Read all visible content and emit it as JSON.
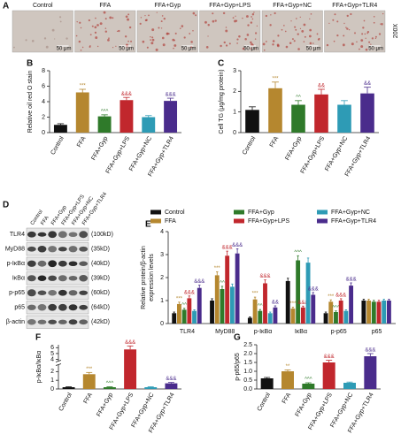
{
  "panel_a": {
    "label": "A",
    "columns": [
      "Control",
      "FFA",
      "FFA+Gyp",
      "FFA+Gyp+LPS",
      "FFA+Gyp+NC",
      "FFA+Gyp+TLR4"
    ],
    "scale_bar": "50 μm",
    "magnification": "200X"
  },
  "panel_d": {
    "label": "D",
    "columns": [
      "Control",
      "FFA",
      "FFA+Gyp",
      "FFA+Gyp+LPS",
      "FFA+Gyp+NC",
      "FFA+Gyp+TLR4"
    ],
    "rows": [
      {
        "name": "TLR4",
        "size": "(100kD)"
      },
      {
        "name": "MyD88",
        "size": "(35kD)"
      },
      {
        "name": "p-IκBα",
        "size": "(40kD)"
      },
      {
        "name": "IκBα",
        "size": "(39kD)"
      },
      {
        "name": "p-p65",
        "size": "(60kD)"
      },
      {
        "name": "p65",
        "size": "(64kD)"
      },
      {
        "name": "β-actin",
        "size": "(42kD)"
      }
    ]
  },
  "chart_data": [
    {
      "type": "bar",
      "label": "B",
      "y_label": "Relative oil red O stain",
      "categories": [
        "Control",
        "FFA",
        "FFA+Gyp",
        "FFA+Gyp+LPS",
        "FFA+Gyp+NC",
        "FFA+Gyp+TLR4"
      ],
      "values": [
        1.0,
        5.2,
        2.1,
        4.2,
        2.0,
        4.1
      ],
      "errors": [
        0.15,
        0.4,
        0.2,
        0.35,
        0.2,
        0.35
      ],
      "colors": [
        "#111111",
        "#b5872f",
        "#2f7a2a",
        "#c1272d",
        "#2e9bb5",
        "#4a2c8c"
      ],
      "annotations": [
        null,
        "***",
        "^^^",
        "&&&",
        null,
        "&&&"
      ],
      "ylim": [
        0,
        8
      ],
      "yticks": [
        0,
        2,
        4,
        6,
        8
      ]
    },
    {
      "type": "bar",
      "label": "C",
      "y_label": "Cell TG (μg/mg protein)",
      "categories": [
        "Control",
        "FFA",
        "FFA+Gyp",
        "FFA+Gyp+LPS",
        "FFA+Gyp+NC",
        "FFA+Gyp+TLR4"
      ],
      "values": [
        1.1,
        2.15,
        1.35,
        1.85,
        1.35,
        1.9
      ],
      "errors": [
        0.15,
        0.3,
        0.2,
        0.25,
        0.2,
        0.3
      ],
      "colors": [
        "#111111",
        "#b5872f",
        "#2f7a2a",
        "#c1272d",
        "#2e9bb5",
        "#4a2c8c"
      ],
      "annotations": [
        null,
        "***",
        "^^",
        "&&",
        null,
        "&&"
      ],
      "ylim": [
        0,
        3
      ],
      "yticks": [
        0,
        1,
        2,
        3
      ]
    },
    {
      "type": "grouped_bar",
      "label": "E",
      "y_label": [
        "Relative protein/β-actin",
        "expression levels"
      ],
      "categories": [
        "TLR4",
        "MyD88",
        "p-IκBα",
        "IκBα",
        "p-p65",
        "p65"
      ],
      "ylim": [
        0,
        4
      ],
      "yticks": [
        0,
        1,
        2,
        3,
        4
      ],
      "series": [
        {
          "name": "Control",
          "color": "#111111",
          "values": [
            0.45,
            1.0,
            0.25,
            1.85,
            0.45,
            1.0
          ],
          "errors": [
            0.05,
            0.08,
            0.04,
            0.12,
            0.05,
            0.06
          ]
        },
        {
          "name": "FFA",
          "color": "#b5872f",
          "values": [
            0.85,
            2.1,
            1.05,
            0.65,
            0.95,
            1.0
          ],
          "errors": [
            0.08,
            0.15,
            0.1,
            0.06,
            0.08,
            0.06
          ],
          "annotations": [
            "***",
            "***",
            "***",
            "***",
            "***",
            null
          ]
        },
        {
          "name": "FFA+Gyp",
          "color": "#2f7a2a",
          "values": [
            0.6,
            1.5,
            0.55,
            2.75,
            0.5,
            0.95
          ],
          "errors": [
            0.06,
            0.12,
            0.06,
            0.2,
            0.05,
            0.06
          ],
          "annotations": [
            "^^",
            "^^",
            "^^",
            "^^^",
            "^^^",
            null
          ]
        },
        {
          "name": "FFA+Gyp+LPS",
          "color": "#c1272d",
          "values": [
            1.1,
            2.95,
            1.75,
            0.7,
            1.0,
            0.95
          ],
          "errors": [
            0.1,
            0.2,
            0.15,
            0.06,
            0.08,
            0.06
          ],
          "annotations": [
            "&&&",
            "&&&",
            "&&&",
            "&&&",
            "&&&",
            null
          ]
        },
        {
          "name": "FFA+Gyp+NC",
          "color": "#2e9bb5",
          "values": [
            0.55,
            1.6,
            0.45,
            2.65,
            0.55,
            1.0
          ],
          "errors": [
            0.05,
            0.12,
            0.05,
            0.2,
            0.05,
            0.06
          ]
        },
        {
          "name": "FFA+Gyp+TLR4",
          "color": "#4a2c8c",
          "values": [
            1.55,
            3.05,
            0.7,
            1.25,
            1.65,
            1.0
          ],
          "errors": [
            0.12,
            0.2,
            0.07,
            0.1,
            0.12,
            0.06
          ],
          "annotations": [
            "&&&",
            "&&&",
            "&&",
            "&&&",
            "&&&",
            null
          ]
        }
      ]
    },
    {
      "type": "bar",
      "label": "F",
      "y_label": "p-IκBα/IκBα",
      "categories": [
        "Control",
        "FFA",
        "FFA+Gyp",
        "FFA+Gyp+LPS",
        "FFA+Gyp+NC",
        "FFA+Gyp+TLR4"
      ],
      "values": [
        0.2,
        1.7,
        0.2,
        5.7,
        0.2,
        0.65
      ],
      "errors": [
        0.05,
        0.2,
        0.05,
        0.6,
        0.05,
        0.1
      ],
      "colors": [
        "#111111",
        "#b5872f",
        "#2f7a2a",
        "#c1272d",
        "#2e9bb5",
        "#4a2c8c"
      ],
      "annotations": [
        null,
        "***",
        "^^^",
        "&&&",
        null,
        "&&&"
      ],
      "ylim": [
        0,
        6.5
      ],
      "ybreak": [
        2.8,
        3.7
      ],
      "yticks": [
        0,
        1,
        2,
        4,
        5,
        6
      ]
    },
    {
      "type": "bar",
      "label": "G",
      "y_label": "p-p65/p65",
      "categories": [
        "Control",
        "FFA",
        "FFA+Gyp",
        "FFA+Gyp+LPS",
        "FFA+Gyp+NC",
        "FFA+Gyp+TLR4"
      ],
      "values": [
        0.6,
        1.0,
        0.3,
        1.5,
        0.35,
        1.85
      ],
      "errors": [
        0.05,
        0.08,
        0.05,
        0.12,
        0.04,
        0.15
      ],
      "colors": [
        "#111111",
        "#b5872f",
        "#2f7a2a",
        "#c1272d",
        "#2e9bb5",
        "#4a2c8c"
      ],
      "annotations": [
        null,
        "**",
        "^^^",
        "&&&",
        null,
        "&&&"
      ],
      "ylim": [
        0,
        2.5
      ],
      "yticks": [
        {
          "value": 0,
          "label": "0.0"
        },
        0.5,
        {
          "value": 1,
          "label": "1.0"
        },
        1.5,
        {
          "value": 2,
          "label": "2.0"
        },
        2.5
      ]
    }
  ]
}
